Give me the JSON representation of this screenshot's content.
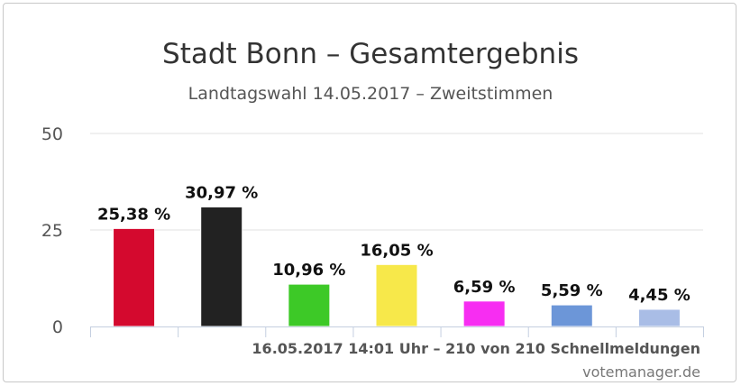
{
  "chart_data": {
    "type": "bar",
    "title": "Stadt Bonn – Gesamtergebnis",
    "subtitle": "Landtagswahl 14.05.2017 – Zweitstimmen",
    "categories": [
      "",
      "",
      "",
      "",
      "",
      "",
      ""
    ],
    "values": [
      25.38,
      30.97,
      10.96,
      16.05,
      6.59,
      5.59,
      4.45
    ],
    "data_labels": [
      "25,38 %",
      "30,97 %",
      "10,96 %",
      "16,05 %",
      "6,59 %",
      "5,59 %",
      "4,45 %"
    ],
    "bar_colors": [
      "#d4092e",
      "#222222",
      "#3dc927",
      "#f7e84a",
      "#f72df2",
      "#6c96d8",
      "#a9bde6"
    ],
    "ylim": [
      0,
      50
    ],
    "yticks": [
      0,
      25,
      50
    ],
    "ytick_labels": [
      "0",
      "25",
      "50"
    ],
    "grid": true,
    "legend": "none",
    "xlabel": "",
    "ylabel": ""
  },
  "footer": {
    "timestamp": "16.05.2017 14:01 Uhr – 210 von 210 Schnellmeldungen",
    "credit": "votemanager.de"
  },
  "colors": {
    "title": "#333333",
    "subtitle": "#555555",
    "axis_text": "#555555",
    "grid": "#e0e0e0",
    "axis_line": "#c4cfe0",
    "data_label": "#111111"
  }
}
